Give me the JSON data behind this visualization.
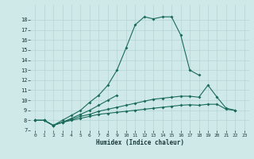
{
  "xlabel": "Humidex (Indice chaleur)",
  "background_color": "#cfe8e8",
  "line_color": "#1a6b5a",
  "xlim": [
    0,
    23
  ],
  "ylim": [
    7,
    19
  ],
  "yticks": [
    7,
    8,
    9,
    10,
    11,
    12,
    13,
    14,
    15,
    16,
    17,
    18
  ],
  "xticks": [
    0,
    1,
    2,
    3,
    4,
    5,
    6,
    7,
    8,
    9,
    10,
    11,
    12,
    13,
    14,
    15,
    16,
    17,
    18,
    19,
    20,
    21,
    22,
    23
  ],
  "curve1_x": [
    0,
    1,
    2,
    3,
    4,
    5,
    6,
    7,
    8,
    9,
    10,
    11,
    12,
    13,
    14,
    15,
    16,
    17,
    18
  ],
  "curve1_y": [
    8.0,
    8.0,
    7.5,
    8.0,
    8.5,
    9.0,
    9.8,
    10.5,
    11.5,
    13.0,
    15.2,
    17.5,
    18.3,
    18.1,
    18.3,
    18.3,
    16.5,
    13.0,
    12.5
  ],
  "curve2_x": [
    0,
    1,
    2,
    3,
    4,
    5,
    6,
    7,
    8,
    9
  ],
  "curve2_y": [
    8.0,
    8.0,
    7.5,
    7.8,
    8.2,
    8.6,
    9.0,
    9.5,
    10.0,
    10.5
  ],
  "curve3_x": [
    0,
    1,
    2,
    3,
    4,
    5,
    6,
    7,
    8,
    9,
    10,
    11,
    12,
    13,
    14,
    15,
    16,
    17,
    18,
    19,
    20,
    21,
    22
  ],
  "curve3_y": [
    8.0,
    8.0,
    7.5,
    7.8,
    8.1,
    8.4,
    8.6,
    8.9,
    9.1,
    9.3,
    9.5,
    9.7,
    9.9,
    10.1,
    10.2,
    10.3,
    10.4,
    10.4,
    10.3,
    11.5,
    10.3,
    9.2,
    9.0
  ],
  "curve4_x": [
    0,
    1,
    2,
    3,
    4,
    5,
    6,
    7,
    8,
    9,
    10,
    11,
    12,
    13,
    14,
    15,
    16,
    17,
    18,
    19,
    20,
    21,
    22
  ],
  "curve4_y": [
    8.0,
    8.0,
    7.5,
    7.8,
    8.0,
    8.2,
    8.4,
    8.6,
    8.7,
    8.8,
    8.9,
    9.0,
    9.1,
    9.2,
    9.3,
    9.4,
    9.5,
    9.55,
    9.5,
    9.6,
    9.6,
    9.1,
    9.0
  ]
}
